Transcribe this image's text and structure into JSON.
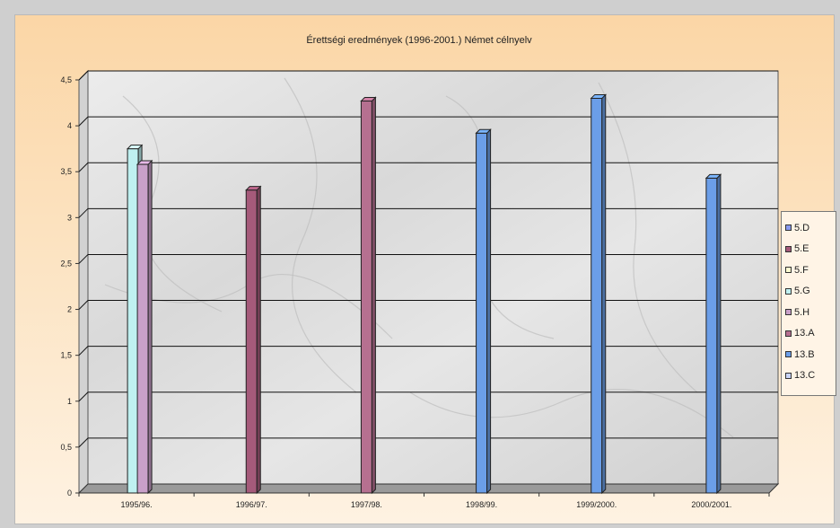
{
  "chart_data": {
    "type": "bar",
    "title": "Érettségi eredmények (1996-2001.) Német célnyelv",
    "categories": [
      "1995/96.",
      "1996/97.",
      "1997/98.",
      "1998/99.",
      "1999/2000.",
      "2000/2001."
    ],
    "y_ticks": [
      "0",
      "0,5",
      "1",
      "1,5",
      "2",
      "2,5",
      "3",
      "3,5",
      "4",
      "4,5"
    ],
    "ylim": [
      0,
      4.5
    ],
    "grid": true,
    "legend_position": "right",
    "series": [
      {
        "name": "5.D",
        "color": "#8899ee",
        "values": [
          null,
          null,
          null,
          null,
          null,
          null
        ]
      },
      {
        "name": "5.E",
        "color": "#a55a7a",
        "values": [
          null,
          3.3,
          null,
          null,
          null,
          null
        ]
      },
      {
        "name": "5.F",
        "color": "#fffbd0",
        "values": [
          null,
          null,
          null,
          null,
          null,
          null
        ]
      },
      {
        "name": "5.G",
        "color": "#bff0f0",
        "values": [
          3.75,
          null,
          null,
          null,
          null,
          null
        ]
      },
      {
        "name": "5.H",
        "color": "#c9a0c9",
        "values": [
          3.58,
          null,
          null,
          null,
          null,
          null
        ]
      },
      {
        "name": "13.A",
        "color": "#b67090",
        "values": [
          null,
          null,
          4.27,
          null,
          null,
          null
        ]
      },
      {
        "name": "13.B",
        "color": "#6b9ee8",
        "values": [
          null,
          null,
          null,
          3.92,
          4.3,
          3.43
        ]
      },
      {
        "name": "13.C",
        "color": "#c8d4f8",
        "values": [
          null,
          null,
          null,
          null,
          null,
          null
        ]
      }
    ]
  }
}
